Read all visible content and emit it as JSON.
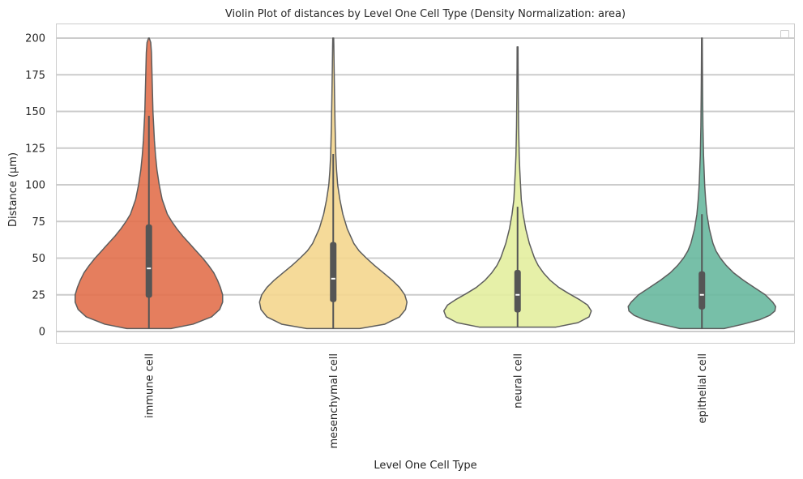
{
  "chart_data": {
    "type": "violin",
    "title": "Violin Plot of distances by Level One Cell Type (Density Normalization: area)",
    "xlabel": "Level One Cell Type",
    "ylabel": "Distance (µm)",
    "ylim": [
      -7,
      210
    ],
    "yticks": [
      0,
      25,
      50,
      75,
      100,
      125,
      150,
      175,
      200
    ],
    "legend": "top-right (empty)",
    "categories": [
      "immune cell",
      "mesenchymal cell",
      "neural cell",
      "epithelial cell"
    ],
    "colors": [
      "#e2704c",
      "#f4d68e",
      "#e3ee9e",
      "#68b89f"
    ],
    "series": [
      {
        "name": "immune cell",
        "min": 2,
        "max": 200,
        "q1": 23,
        "median": 43,
        "q3": 73,
        "whisker_low": 2,
        "whisker_high": 147,
        "profile": [
          [
            2,
            0.3
          ],
          [
            5,
            0.6
          ],
          [
            10,
            0.85
          ],
          [
            15,
            0.96
          ],
          [
            20,
            1.0
          ],
          [
            25,
            1.0
          ],
          [
            30,
            0.97
          ],
          [
            35,
            0.93
          ],
          [
            40,
            0.88
          ],
          [
            45,
            0.81
          ],
          [
            50,
            0.73
          ],
          [
            55,
            0.64
          ],
          [
            60,
            0.55
          ],
          [
            65,
            0.46
          ],
          [
            70,
            0.38
          ],
          [
            75,
            0.31
          ],
          [
            80,
            0.25
          ],
          [
            90,
            0.18
          ],
          [
            100,
            0.14
          ],
          [
            110,
            0.11
          ],
          [
            120,
            0.09
          ],
          [
            130,
            0.075
          ],
          [
            140,
            0.065
          ],
          [
            150,
            0.055
          ],
          [
            160,
            0.05
          ],
          [
            170,
            0.045
          ],
          [
            180,
            0.04
          ],
          [
            190,
            0.035
          ],
          [
            197,
            0.025
          ],
          [
            200,
            0.005
          ]
        ]
      },
      {
        "name": "mesenchymal cell",
        "min": 2,
        "max": 200,
        "q1": 20,
        "median": 36,
        "q3": 61,
        "whisker_low": 2,
        "whisker_high": 121,
        "profile": [
          [
            2,
            0.36
          ],
          [
            5,
            0.7
          ],
          [
            10,
            0.9
          ],
          [
            15,
            0.98
          ],
          [
            20,
            1.0
          ],
          [
            25,
            0.97
          ],
          [
            30,
            0.9
          ],
          [
            35,
            0.8
          ],
          [
            40,
            0.68
          ],
          [
            45,
            0.56
          ],
          [
            50,
            0.45
          ],
          [
            55,
            0.35
          ],
          [
            60,
            0.28
          ],
          [
            70,
            0.19
          ],
          [
            80,
            0.13
          ],
          [
            90,
            0.09
          ],
          [
            100,
            0.06
          ],
          [
            110,
            0.045
          ],
          [
            120,
            0.035
          ],
          [
            140,
            0.025
          ],
          [
            160,
            0.018
          ],
          [
            180,
            0.012
          ],
          [
            195,
            0.008
          ],
          [
            200,
            0.006
          ]
        ]
      },
      {
        "name": "neural cell",
        "min": 3,
        "max": 194,
        "q1": 13,
        "median": 25,
        "q3": 42,
        "whisker_low": 3,
        "whisker_high": 85,
        "profile": [
          [
            3,
            0.52
          ],
          [
            6,
            0.82
          ],
          [
            10,
            0.97
          ],
          [
            14,
            1.0
          ],
          [
            18,
            0.95
          ],
          [
            22,
            0.83
          ],
          [
            26,
            0.69
          ],
          [
            30,
            0.56
          ],
          [
            35,
            0.44
          ],
          [
            40,
            0.35
          ],
          [
            45,
            0.28
          ],
          [
            50,
            0.23
          ],
          [
            60,
            0.16
          ],
          [
            70,
            0.11
          ],
          [
            80,
            0.075
          ],
          [
            90,
            0.05
          ],
          [
            100,
            0.04
          ],
          [
            110,
            0.03
          ],
          [
            120,
            0.022
          ],
          [
            140,
            0.014
          ],
          [
            160,
            0.01
          ],
          [
            180,
            0.007
          ],
          [
            194,
            0.006
          ]
        ]
      },
      {
        "name": "epithelial cell",
        "min": 2,
        "max": 200,
        "q1": 15,
        "median": 25,
        "q3": 41,
        "whisker_low": 2,
        "whisker_high": 80,
        "profile": [
          [
            2,
            0.3
          ],
          [
            5,
            0.56
          ],
          [
            8,
            0.78
          ],
          [
            11,
            0.92
          ],
          [
            14,
            0.99
          ],
          [
            17,
            1.0
          ],
          [
            20,
            0.96
          ],
          [
            25,
            0.86
          ],
          [
            30,
            0.71
          ],
          [
            35,
            0.56
          ],
          [
            40,
            0.43
          ],
          [
            45,
            0.33
          ],
          [
            50,
            0.25
          ],
          [
            55,
            0.19
          ],
          [
            60,
            0.15
          ],
          [
            70,
            0.1
          ],
          [
            80,
            0.068
          ],
          [
            90,
            0.05
          ],
          [
            100,
            0.037
          ],
          [
            120,
            0.022
          ],
          [
            140,
            0.014
          ],
          [
            160,
            0.01
          ],
          [
            180,
            0.007
          ],
          [
            200,
            0.005
          ]
        ]
      }
    ]
  }
}
